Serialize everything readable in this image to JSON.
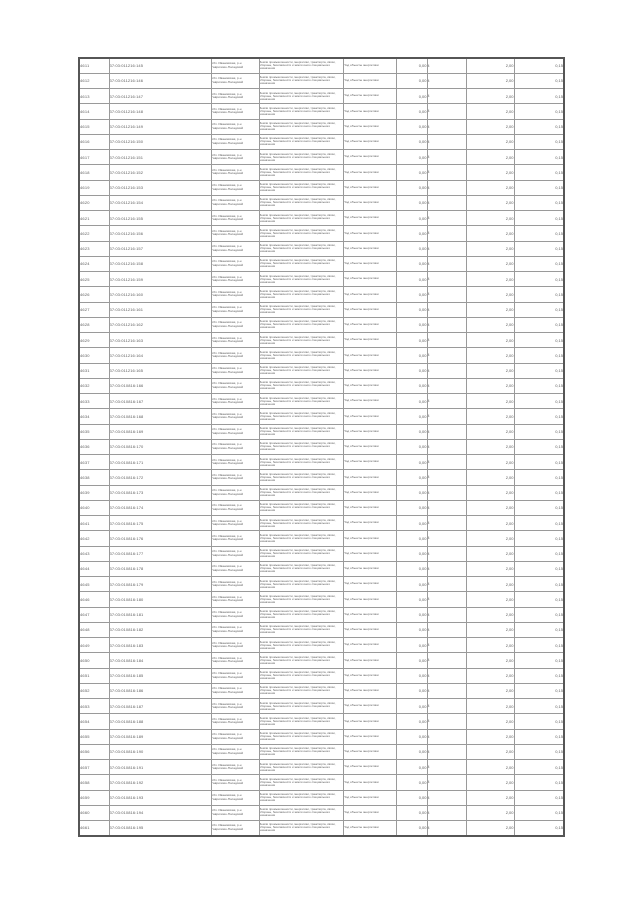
{
  "document": {
    "kind": "scanned cadastral valuation table page",
    "colors": {
      "paper": "#ffffff",
      "grid": "#9a9a9a",
      "outer_border": "#565656",
      "text": "#5c5c5c"
    }
  },
  "table": {
    "columns": [
      "row-number",
      "cadastral-number",
      "location",
      "land-category",
      "permitted-use",
      "value-1",
      "footnote",
      "value-2",
      "value-3"
    ],
    "shared": {
      "location": "обл. Ивановская, р-н Гаврилово-Посадский",
      "land_category": "Земли промышленности, энергетики, транспорта, связи, обороны, безопасности и земли иного специального назначения",
      "permitted_use": "Под объекты энергетики",
      "value1": "0,00",
      "footnote": "4",
      "value3": "2,00",
      "value4": "0,15"
    },
    "rows": [
      {
        "id": "4611",
        "cadastral_number": "37:03:011216:145"
      },
      {
        "id": "4612",
        "cadastral_number": "37:03:011216:146"
      },
      {
        "id": "4613",
        "cadastral_number": "37:03:011216:147"
      },
      {
        "id": "4614",
        "cadastral_number": "37:03:011216:148"
      },
      {
        "id": "4615",
        "cadastral_number": "37:03:011216:149"
      },
      {
        "id": "4616",
        "cadastral_number": "37:03:011216:150"
      },
      {
        "id": "4617",
        "cadastral_number": "37:03:011216:151"
      },
      {
        "id": "4618",
        "cadastral_number": "37:03:011216:152"
      },
      {
        "id": "4619",
        "cadastral_number": "37:03:011216:153"
      },
      {
        "id": "4620",
        "cadastral_number": "37:03:011216:154"
      },
      {
        "id": "4621",
        "cadastral_number": "37:03:011216:155"
      },
      {
        "id": "4622",
        "cadastral_number": "37:03:011216:156"
      },
      {
        "id": "4623",
        "cadastral_number": "37:03:011216:157"
      },
      {
        "id": "4624",
        "cadastral_number": "37:03:011216:158"
      },
      {
        "id": "4625",
        "cadastral_number": "37:03:011216:159"
      },
      {
        "id": "4626",
        "cadastral_number": "37:03:011216:160"
      },
      {
        "id": "4627",
        "cadastral_number": "37:03:011216:161"
      },
      {
        "id": "4628",
        "cadastral_number": "37:03:011216:162"
      },
      {
        "id": "4629",
        "cadastral_number": "37:03:011216:163"
      },
      {
        "id": "4630",
        "cadastral_number": "37:03:011216:164"
      },
      {
        "id": "4631",
        "cadastral_number": "37:03:011216:165"
      },
      {
        "id": "4632",
        "cadastral_number": "37:03:010816:166"
      },
      {
        "id": "4633",
        "cadastral_number": "37:03:010816:167"
      },
      {
        "id": "4634",
        "cadastral_number": "37:03:010816:168"
      },
      {
        "id": "4635",
        "cadastral_number": "37:03:010816:169"
      },
      {
        "id": "4636",
        "cadastral_number": "37:03:010816:170"
      },
      {
        "id": "4637",
        "cadastral_number": "37:03:010816:171"
      },
      {
        "id": "4638",
        "cadastral_number": "37:03:010816:172"
      },
      {
        "id": "4639",
        "cadastral_number": "37:03:010816:173"
      },
      {
        "id": "4640",
        "cadastral_number": "37:03:010816:174"
      },
      {
        "id": "4641",
        "cadastral_number": "37:03:010816:175"
      },
      {
        "id": "4642",
        "cadastral_number": "37:03:010816:176"
      },
      {
        "id": "4643",
        "cadastral_number": "37:03:010816:177"
      },
      {
        "id": "4644",
        "cadastral_number": "37:03:010816:178"
      },
      {
        "id": "4645",
        "cadastral_number": "37:03:010816:179"
      },
      {
        "id": "4646",
        "cadastral_number": "37:03:010816:180"
      },
      {
        "id": "4647",
        "cadastral_number": "37:03:010816:181"
      },
      {
        "id": "4648",
        "cadastral_number": "37:03:010816:182"
      },
      {
        "id": "4649",
        "cadastral_number": "37:03:010816:183"
      },
      {
        "id": "4650",
        "cadastral_number": "37:03:010816:184"
      },
      {
        "id": "4651",
        "cadastral_number": "37:03:010816:185"
      },
      {
        "id": "4652",
        "cadastral_number": "37:03:010816:186"
      },
      {
        "id": "4653",
        "cadastral_number": "37:03:010816:187"
      },
      {
        "id": "4654",
        "cadastral_number": "37:03:010816:188"
      },
      {
        "id": "4655",
        "cadastral_number": "37:03:010816:189"
      },
      {
        "id": "4656",
        "cadastral_number": "37:03:010816:190"
      },
      {
        "id": "4657",
        "cadastral_number": "37:03:010816:191"
      },
      {
        "id": "4658",
        "cadastral_number": "37:03:010816:192"
      },
      {
        "id": "4659",
        "cadastral_number": "37:03:010816:193"
      },
      {
        "id": "4660",
        "cadastral_number": "37:03:010816:194"
      },
      {
        "id": "4661",
        "cadastral_number": "37:03:010816:195"
      }
    ]
  }
}
